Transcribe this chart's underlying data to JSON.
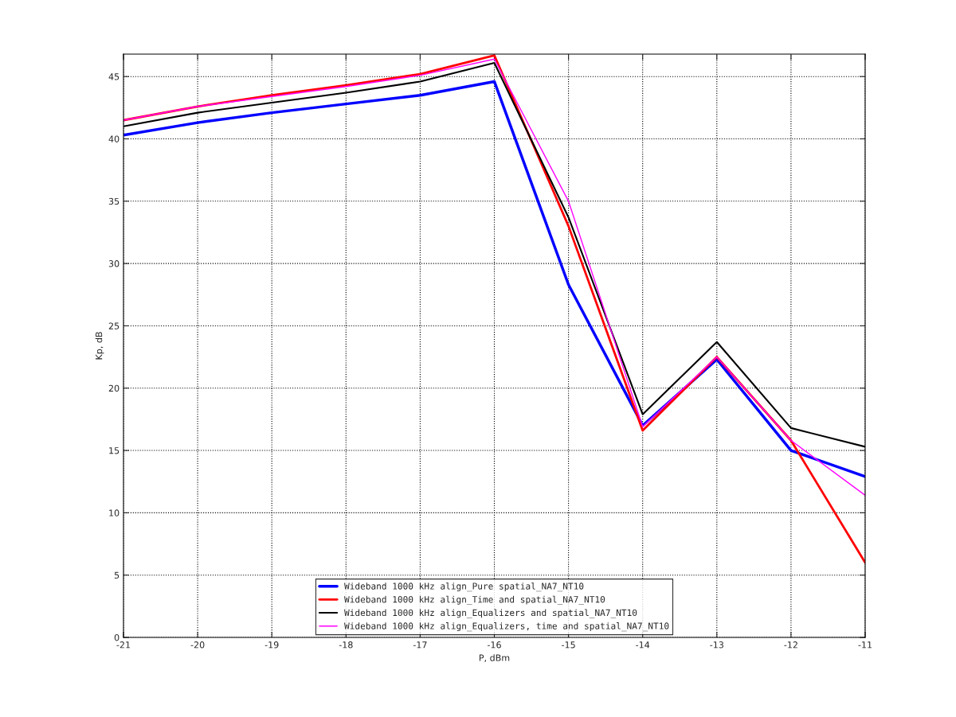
{
  "chart_data": {
    "type": "line",
    "xlabel": "P, dBm",
    "ylabel": "Kp, dB",
    "x": [
      -21,
      -20,
      -19,
      -18,
      -17,
      -16,
      -15,
      -14,
      -13,
      -12,
      -11
    ],
    "series": [
      {
        "name": "Wideband 1000 kHz align_Pure spatial_NA7_NT10",
        "color": "#0000ff",
        "values": [
          40.3,
          41.3,
          42.1,
          42.8,
          43.5,
          44.6,
          28.3,
          17.0,
          22.3,
          15.0,
          12.9
        ]
      },
      {
        "name": "Wideband 1000 kHz align_Time and spatial_NA7_NT10",
        "color": "#ff0000",
        "values": [
          41.5,
          42.6,
          43.5,
          44.3,
          45.2,
          46.7,
          33.0,
          16.6,
          22.5,
          15.8,
          6.0
        ]
      },
      {
        "name": "Wideband 1000 kHz align_Equalizers and spatial_NA7_NT10",
        "color": "#000000",
        "values": [
          41.0,
          42.1,
          42.9,
          43.7,
          44.6,
          46.1,
          33.7,
          17.9,
          23.7,
          16.8,
          15.3
        ]
      },
      {
        "name": "Wideband 1000 kHz align_Equalizers, time and spatial_NA7_NT10",
        "color": "#ff00ff",
        "values": [
          41.5,
          42.6,
          43.4,
          44.2,
          45.1,
          46.4,
          35.0,
          16.9,
          22.5,
          15.8,
          11.4
        ]
      }
    ],
    "xlim": [
      -21,
      -11
    ],
    "xticks": [
      -21,
      -20,
      -19,
      -18,
      -17,
      -16,
      -15,
      -14,
      -13,
      -12,
      -11
    ],
    "ylim": [
      0,
      46.8
    ],
    "yticks": [
      0,
      5,
      10,
      15,
      20,
      25,
      30,
      35,
      40,
      45
    ],
    "grid": true,
    "legend": "bottom",
    "marker": "none",
    "line_style": "solid"
  }
}
